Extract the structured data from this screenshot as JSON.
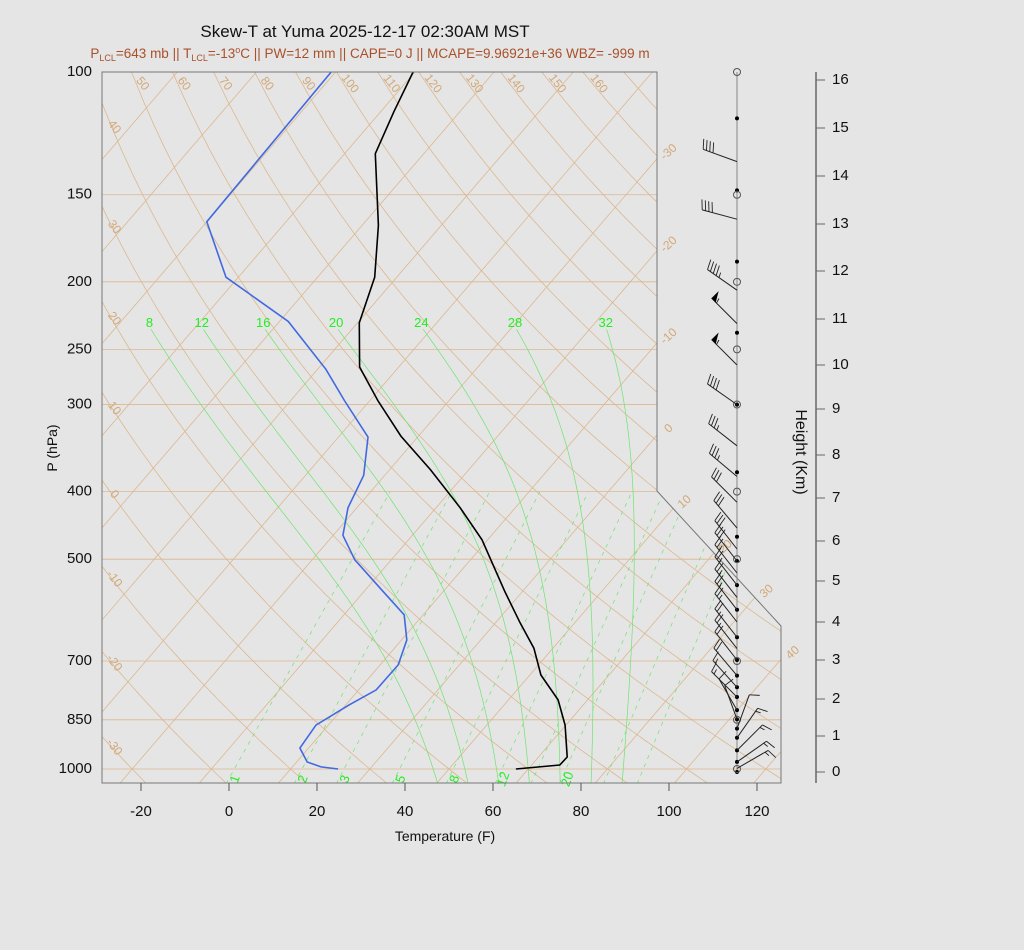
{
  "chart_data": {
    "type": "line",
    "title": "Skew-T at Yuma 2025-12-17 02:30AM MST",
    "subtitle": {
      "p": "P",
      "lcl": "LCL",
      "p_value": "=643 mb || T",
      "t_value": "=-13",
      "deg": "o",
      "rest": "C || PW=12 mm || CAPE=0 J || MCAPE=9.96921e+36 WBZ= -999 m"
    },
    "xlabel": "Temperature (F)",
    "ylabel": "P (hPa)",
    "y2label": "Height (Km)",
    "x_ticks": [
      -20,
      0,
      20,
      40,
      60,
      80,
      100,
      120
    ],
    "xlim_F": [
      -29,
      125
    ],
    "pressure_ticks": [
      100,
      150,
      200,
      250,
      300,
      400,
      500,
      700,
      850,
      1000
    ],
    "pressure_range_hPa": [
      1047,
      100
    ],
    "y_scale": "log",
    "height_ticks_km": [
      0,
      1,
      2,
      3,
      4,
      5,
      6,
      7,
      8,
      9,
      10,
      11,
      12,
      13,
      14,
      15,
      16
    ],
    "isotherm_labels_C": [
      -30,
      -20,
      -10,
      0,
      10,
      20,
      30,
      40
    ],
    "dry_adiabat_labels_top_C": [
      50,
      60,
      70,
      80,
      90,
      100,
      110,
      120,
      130,
      140,
      150,
      160
    ],
    "dry_adiabat_labels_left_C": [
      40,
      30,
      20,
      10,
      0,
      -10,
      -20,
      -30
    ],
    "moist_adiabat_labels_C": [
      8,
      12,
      16,
      20,
      24,
      28,
      32
    ],
    "mixing_ratio_labels_gkg": [
      1,
      2,
      3,
      5,
      8,
      12,
      20
    ],
    "temperature_profile": {
      "pressure_hPa": [
        1000,
        987,
        961,
        865,
        796,
        733,
        671,
        617,
        557,
        469,
        422,
        372,
        333,
        296,
        265,
        229,
        197,
        166,
        131,
        114,
        100
      ],
      "temperature_F": [
        65.2,
        74.4,
        74.5,
        67.8,
        61.3,
        52.5,
        45.7,
        37.6,
        28.1,
        12.7,
        1.5,
        -12.7,
        -26,
        -38.2,
        -48.9,
        -57.6,
        -63,
        -72.3,
        -87,
        -91,
        -94.4
      ]
    },
    "dewpoint_profile": {
      "pressure_hPa": [
        1000,
        993,
        977,
        933,
        865,
        809,
        770,
        709,
        653,
        601,
        553,
        501,
        462,
        422,
        379,
        334,
        296,
        267,
        228,
        197,
        164,
        100
      ],
      "dewpoint_F": [
        24.8,
        20.5,
        16.4,
        12,
        11.2,
        14.8,
        18,
        18.1,
        15.2,
        9.7,
        -0.4,
        -12.3,
        -19.8,
        -24,
        -26.8,
        -33.3,
        -45.8,
        -56.1,
        -74,
        -96.8,
        -112,
        -113
      ]
    },
    "winds": [
      {
        "height_km": 14.3,
        "dir_deg": 290,
        "speed_kt": 40
      },
      {
        "height_km": 13.1,
        "dir_deg": 285,
        "speed_kt": 40
      },
      {
        "height_km": 11.6,
        "dir_deg": 305,
        "speed_kt": 45
      },
      {
        "height_km": 10.9,
        "dir_deg": 315,
        "speed_kt": 55
      },
      {
        "height_km": 10.0,
        "dir_deg": 315,
        "speed_kt": 55
      },
      {
        "height_km": 9.1,
        "dir_deg": 305,
        "speed_kt": 40
      },
      {
        "height_km": 8.2,
        "dir_deg": 308,
        "speed_kt": 35
      },
      {
        "height_km": 7.5,
        "dir_deg": 310,
        "speed_kt": 35
      },
      {
        "height_km": 6.9,
        "dir_deg": 315,
        "speed_kt": 30
      },
      {
        "height_km": 6.3,
        "dir_deg": 320,
        "speed_kt": 30
      },
      {
        "height_km": 5.8,
        "dir_deg": 322,
        "speed_kt": 30
      },
      {
        "height_km": 5.5,
        "dir_deg": 322,
        "speed_kt": 30
      },
      {
        "height_km": 5.2,
        "dir_deg": 322,
        "speed_kt": 25
      },
      {
        "height_km": 4.9,
        "dir_deg": 322,
        "speed_kt": 25
      },
      {
        "height_km": 4.6,
        "dir_deg": 322,
        "speed_kt": 25
      },
      {
        "height_km": 4.3,
        "dir_deg": 322,
        "speed_kt": 25
      },
      {
        "height_km": 4.0,
        "dir_deg": 322,
        "speed_kt": 25
      },
      {
        "height_km": 3.6,
        "dir_deg": 322,
        "speed_kt": 20
      },
      {
        "height_km": 3.3,
        "dir_deg": 322,
        "speed_kt": 20
      },
      {
        "height_km": 3.0,
        "dir_deg": 322,
        "speed_kt": 20
      },
      {
        "height_km": 2.6,
        "dir_deg": 320,
        "speed_kt": 20
      },
      {
        "height_km": 2.3,
        "dir_deg": 318,
        "speed_kt": 15
      },
      {
        "height_km": 2.05,
        "dir_deg": 315,
        "speed_kt": 15
      },
      {
        "height_km": 1.7,
        "dir_deg": 330,
        "speed_kt": 10
      },
      {
        "height_km": 1.45,
        "dir_deg": 340,
        "speed_kt": 10
      },
      {
        "height_km": 1.2,
        "dir_deg": 20,
        "speed_kt": 10
      },
      {
        "height_km": 0.95,
        "dir_deg": 35,
        "speed_kt": 15
      },
      {
        "height_km": 0.6,
        "dir_deg": 45,
        "speed_kt": 15
      },
      {
        "height_km": 0.28,
        "dir_deg": 55,
        "speed_kt": 15
      },
      {
        "height_km": 0.1,
        "dir_deg": 60,
        "speed_kt": 15
      }
    ],
    "level_dots_km": [
      15.2,
      13.7,
      12.2,
      10.7,
      9.1,
      7.6,
      6.1,
      5.5,
      4.9,
      4.3,
      3.6,
      3.0,
      2.6,
      2.3,
      2.05,
      1.7,
      1.45,
      1.2,
      0.95,
      0.6,
      0.28,
      0
    ],
    "level_circles_hPa": [
      100,
      150,
      200,
      250,
      300,
      400,
      500,
      700,
      850,
      1000
    ],
    "grid": true,
    "colors": {
      "background": "#e5e5e5",
      "temperature": "#000000",
      "dewpoint": "#4169e1",
      "grid_lines": "#dcb88f",
      "moist_lines": "#6ee46e",
      "green_labels": "#22ee22",
      "subtitle": "#a9502a"
    }
  }
}
